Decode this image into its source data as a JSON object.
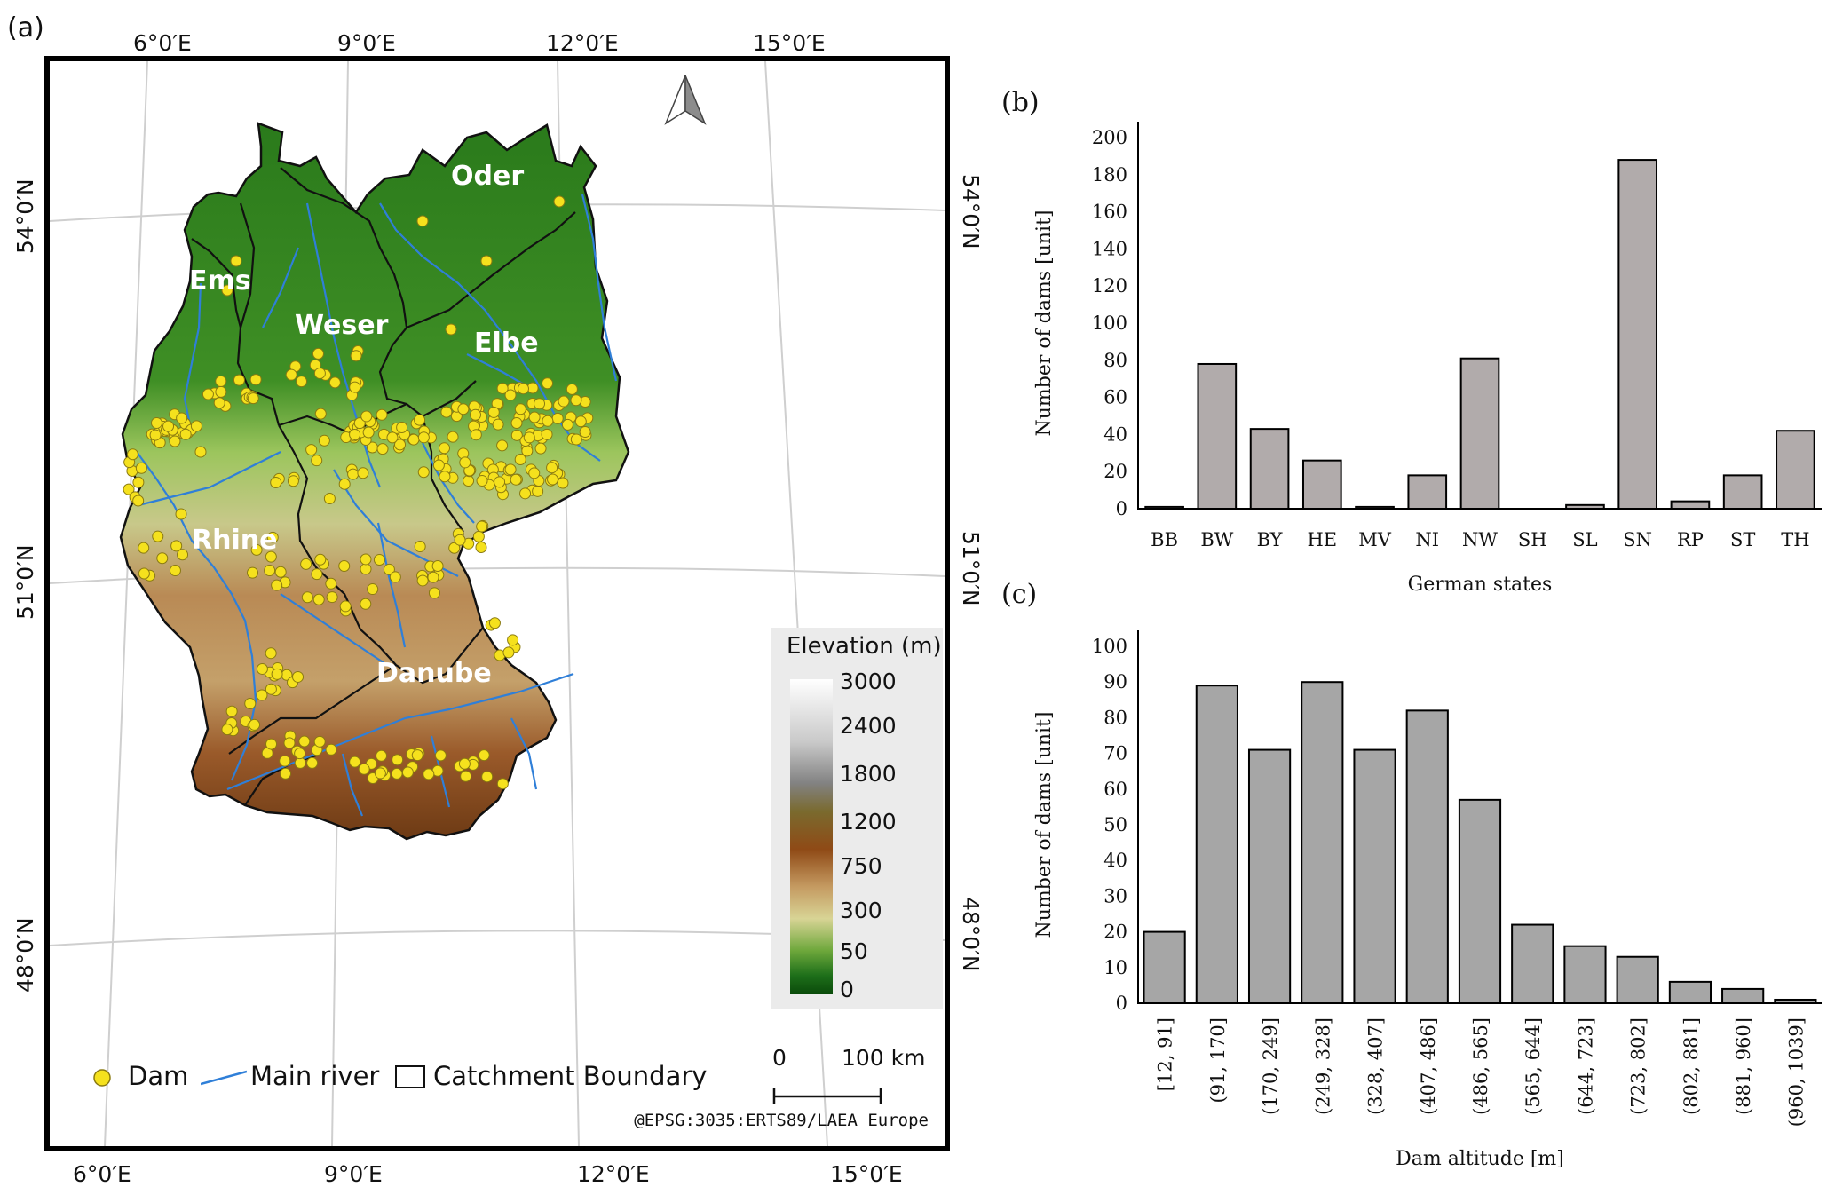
{
  "panels": {
    "a": "(a)",
    "b": "(b)",
    "c": "(c)"
  },
  "map": {
    "lon_labels_top": [
      "6°0′E",
      "9°0′E",
      "12°0′E",
      "15°0′E"
    ],
    "lon_labels_bottom": [
      "6°0′E",
      "9°0′E",
      "12°0′E",
      "15°0′E"
    ],
    "lat_labels_left": [
      "54°0′N",
      "51°0′N",
      "48°0′N"
    ],
    "lat_labels_right": [
      "54°0′N",
      "51°0′N",
      "48°0′N"
    ],
    "basins": {
      "oder": "Oder",
      "ems": "Ems",
      "weser": "Weser",
      "elbe": "Elbe",
      "rhine": "Rhine",
      "danube": "Danube"
    },
    "elevation_legend": {
      "title": "Elevation (m)",
      "ticks": [
        "3000",
        "2400",
        "1800",
        "1200",
        "750",
        "300",
        "50",
        "0"
      ]
    },
    "legend": {
      "dam": "Dam",
      "river": "Main river",
      "catchment": "Catchment Boundary"
    },
    "scale": {
      "zero": "0",
      "length": "100 km"
    },
    "crs": "@EPSG:3035:ERTS89/LAEA Europe",
    "colors": {
      "dam": "#f5e11d",
      "river": "#2f7fd8",
      "lowland": "#2f7d1c",
      "boundary": "#111111"
    }
  },
  "chart_data": [
    {
      "panel": "(b)",
      "type": "bar",
      "categories": [
        "BB",
        "BW",
        "BY",
        "HE",
        "MV",
        "NI",
        "NW",
        "SH",
        "SL",
        "SN",
        "RP",
        "ST",
        "TH"
      ],
      "values": [
        1,
        78,
        43,
        26,
        1,
        18,
        81,
        0,
        2,
        188,
        4,
        18,
        42
      ],
      "xlabel": "German states",
      "ylabel": "Number of dams [unit]",
      "ylim": [
        0,
        200
      ],
      "yticks": [
        0,
        20,
        40,
        60,
        80,
        100,
        120,
        140,
        160,
        180,
        200
      ],
      "bar_color": "#b1abab",
      "grid": false
    },
    {
      "panel": "(c)",
      "type": "bar",
      "categories": [
        "[12, 91]",
        "(91, 170]",
        "(170, 249]",
        "(249, 328]",
        "(328, 407]",
        "(407, 486]",
        "(486, 565]",
        "(565, 644]",
        "(644, 723]",
        "(723, 802]",
        "(802, 881]",
        "(881, 960]",
        "(960, 1039]"
      ],
      "values": [
        20,
        89,
        71,
        90,
        71,
        82,
        57,
        22,
        16,
        13,
        6,
        4,
        1
      ],
      "xlabel": "Dam altitude [m]",
      "ylabel": "Number of dams [unit]",
      "ylim": [
        0,
        100
      ],
      "yticks": [
        0,
        10,
        20,
        30,
        40,
        50,
        60,
        70,
        80,
        90,
        100
      ],
      "bar_color": "#a6a6a6",
      "grid": false
    }
  ]
}
